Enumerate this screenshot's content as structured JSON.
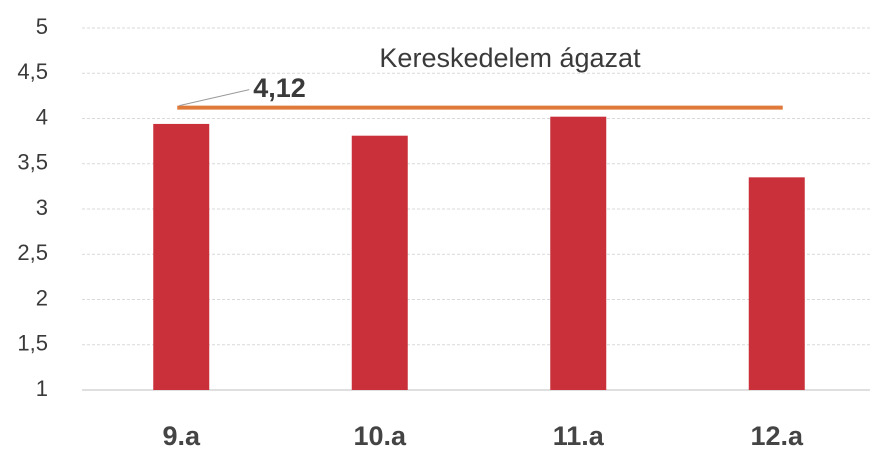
{
  "chart_data": {
    "type": "bar",
    "categories": [
      "9.a",
      "10.a",
      "11.a",
      "12.a"
    ],
    "values": [
      3.94,
      3.81,
      4.02,
      3.35
    ],
    "color": "#c9303a",
    "ylim": [
      1,
      5
    ],
    "yticks": [
      1,
      {
        "value": 1.5,
        "label": "1,5"
      },
      2,
      {
        "value": 2.5,
        "label": "2,5"
      },
      3,
      {
        "value": 3.5,
        "label": "3,5"
      },
      4,
      {
        "value": 4.5,
        "label": "4,5"
      },
      5
    ],
    "grid": true,
    "reference_line": {
      "name": "Kereskedelem ágazat",
      "value": 4.12,
      "label": "4,12",
      "color": "#e07a3a"
    }
  }
}
